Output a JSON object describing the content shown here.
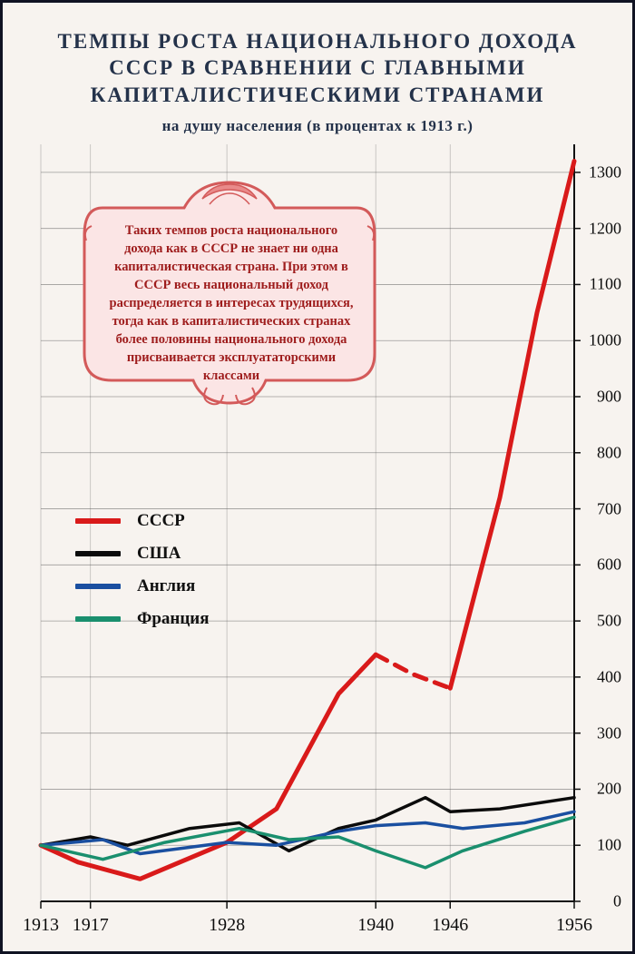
{
  "title_lines": [
    "ТЕМПЫ РОСТА НАЦИОНАЛЬНОГО ДОХОДА",
    "СССР В СРАВНЕНИИ С ГЛАВНЫМИ",
    "КАПИТАЛИСТИЧЕСКИМИ СТРАНАМИ"
  ],
  "subtitle": "на душу населения (в процентах к 1913 г.)",
  "cartouche_text": "Таких темпов роста национального дохода как в СССР не знает ни одна капиталистическая страна. При этом в СССР весь национальный доход распределяется в интересах трудящихся, тогда как в капиталистических странах более половины национального дохода присваивается эксплуататорскими классами",
  "cartouche_fill": "#fbe5e5",
  "cartouche_stroke": "#d35a5a",
  "legend": [
    {
      "label": "СССР",
      "color": "#d91a1a"
    },
    {
      "label": "США",
      "color": "#0b0b0b"
    },
    {
      "label": "Англия",
      "color": "#1a4fa0"
    },
    {
      "label": "Франция",
      "color": "#1a8f6e"
    }
  ],
  "chart": {
    "type": "line",
    "background_color": "#f7f3ef",
    "grid_color": "#555555",
    "axis_color": "#111111",
    "xlim": [
      1913,
      1956
    ],
    "ylim": [
      0,
      1350
    ],
    "yticks": [
      0,
      100,
      200,
      300,
      400,
      500,
      600,
      700,
      800,
      900,
      1000,
      1100,
      1200,
      1300
    ],
    "xticks": [
      1913,
      1917,
      1928,
      1940,
      1946,
      1956
    ],
    "xtick_labels": [
      "1913",
      "1917",
      "1928",
      "1940",
      "1946",
      "1956"
    ],
    "line_width_main": 5,
    "line_width_other": 3.5,
    "series": [
      {
        "name": "СССР",
        "color": "#d91a1a",
        "segments": [
          {
            "dash": false,
            "points": [
              [
                1913,
                100
              ],
              [
                1916,
                70
              ],
              [
                1921,
                40
              ],
              [
                1928,
                105
              ],
              [
                1932,
                165
              ],
              [
                1937,
                370
              ],
              [
                1940,
                440
              ]
            ]
          },
          {
            "dash": true,
            "points": [
              [
                1940,
                440
              ],
              [
                1943,
                405
              ],
              [
                1946,
                380
              ]
            ]
          },
          {
            "dash": false,
            "points": [
              [
                1946,
                380
              ],
              [
                1950,
                720
              ],
              [
                1953,
                1050
              ],
              [
                1956,
                1320
              ]
            ]
          }
        ]
      },
      {
        "name": "США",
        "color": "#0b0b0b",
        "segments": [
          {
            "dash": false,
            "points": [
              [
                1913,
                100
              ],
              [
                1917,
                115
              ],
              [
                1920,
                100
              ],
              [
                1925,
                130
              ],
              [
                1929,
                140
              ],
              [
                1933,
                90
              ],
              [
                1937,
                130
              ],
              [
                1940,
                145
              ],
              [
                1944,
                185
              ],
              [
                1946,
                160
              ],
              [
                1950,
                165
              ],
              [
                1956,
                185
              ]
            ]
          }
        ]
      },
      {
        "name": "Англия",
        "color": "#1a4fa0",
        "segments": [
          {
            "dash": false,
            "points": [
              [
                1913,
                100
              ],
              [
                1918,
                110
              ],
              [
                1921,
                85
              ],
              [
                1928,
                105
              ],
              [
                1932,
                100
              ],
              [
                1937,
                125
              ],
              [
                1940,
                135
              ],
              [
                1944,
                140
              ],
              [
                1947,
                130
              ],
              [
                1952,
                140
              ],
              [
                1956,
                160
              ]
            ]
          }
        ]
      },
      {
        "name": "Франция",
        "color": "#1a8f6e",
        "segments": [
          {
            "dash": false,
            "points": [
              [
                1913,
                100
              ],
              [
                1918,
                75
              ],
              [
                1923,
                105
              ],
              [
                1929,
                130
              ],
              [
                1933,
                110
              ],
              [
                1937,
                115
              ],
              [
                1940,
                90
              ],
              [
                1944,
                60
              ],
              [
                1947,
                90
              ],
              [
                1952,
                125
              ],
              [
                1956,
                150
              ]
            ]
          }
        ]
      }
    ]
  },
  "fonts": {
    "title_pt": 23,
    "subtitle_pt": 17,
    "cartouche_pt": 14.5,
    "legend_pt": 19,
    "ytick_pt": 18,
    "xtick_pt": 20
  }
}
